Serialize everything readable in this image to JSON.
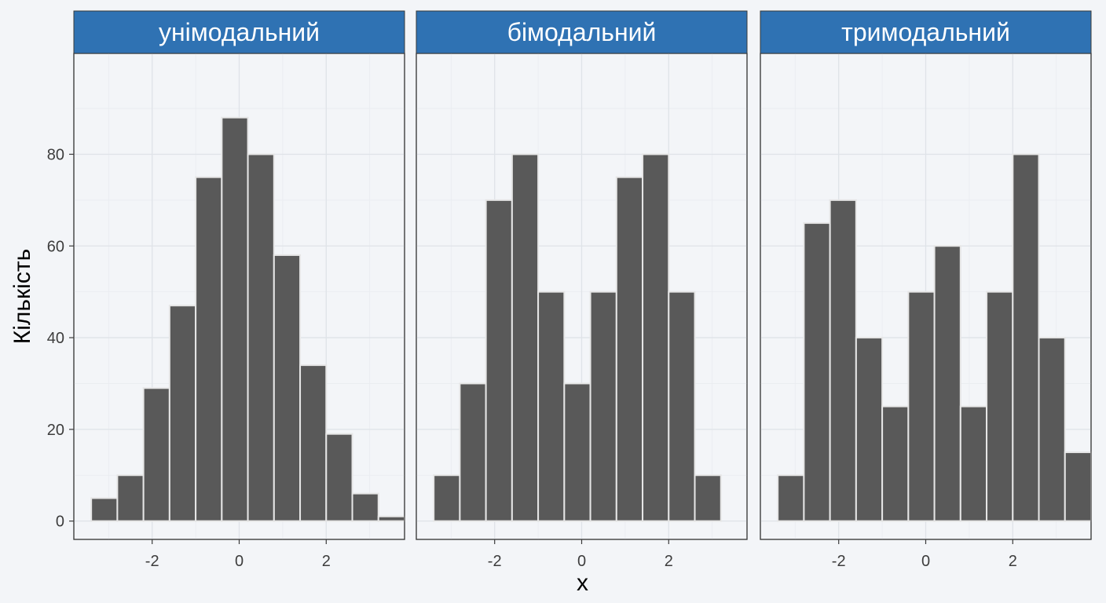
{
  "chart_data": {
    "type": "bar",
    "xlabel": "x",
    "ylabel": "Кількість",
    "ylim": [
      -4,
      102
    ],
    "xlim": [
      -3.8,
      3.8
    ],
    "x_ticks": [
      -2,
      0,
      2
    ],
    "y_ticks": [
      0,
      20,
      40,
      60,
      80
    ],
    "grid": true,
    "panels": [
      {
        "label": "унімодальний",
        "bins": [
          {
            "x0": -3.4,
            "x1": -2.8,
            "count": 5
          },
          {
            "x0": -2.8,
            "x1": -2.2,
            "count": 10
          },
          {
            "x0": -2.2,
            "x1": -1.6,
            "count": 29
          },
          {
            "x0": -1.6,
            "x1": -1.0,
            "count": 47
          },
          {
            "x0": -1.0,
            "x1": -0.4,
            "count": 75
          },
          {
            "x0": -0.4,
            "x1": 0.2,
            "count": 88
          },
          {
            "x0": 0.2,
            "x1": 0.8,
            "count": 80
          },
          {
            "x0": 0.8,
            "x1": 1.4,
            "count": 58
          },
          {
            "x0": 1.4,
            "x1": 2.0,
            "count": 34
          },
          {
            "x0": 2.0,
            "x1": 2.6,
            "count": 19
          },
          {
            "x0": 2.6,
            "x1": 3.2,
            "count": 6
          },
          {
            "x0": 3.2,
            "x1": 3.8,
            "count": 1
          }
        ]
      },
      {
        "label": "бімодальний",
        "bins": [
          {
            "x0": -3.4,
            "x1": -2.8,
            "count": 10
          },
          {
            "x0": -2.8,
            "x1": -2.2,
            "count": 30
          },
          {
            "x0": -2.2,
            "x1": -1.6,
            "count": 70
          },
          {
            "x0": -1.6,
            "x1": -1.0,
            "count": 80
          },
          {
            "x0": -1.0,
            "x1": -0.4,
            "count": 50
          },
          {
            "x0": -0.4,
            "x1": 0.2,
            "count": 30
          },
          {
            "x0": 0.2,
            "x1": 0.8,
            "count": 50
          },
          {
            "x0": 0.8,
            "x1": 1.4,
            "count": 75
          },
          {
            "x0": 1.4,
            "x1": 2.0,
            "count": 80
          },
          {
            "x0": 2.0,
            "x1": 2.6,
            "count": 50
          },
          {
            "x0": 2.6,
            "x1": 3.2,
            "count": 10
          }
        ]
      },
      {
        "label": "тримодальний",
        "bins": [
          {
            "x0": -3.4,
            "x1": -2.8,
            "count": 10
          },
          {
            "x0": -2.8,
            "x1": -2.2,
            "count": 65
          },
          {
            "x0": -2.2,
            "x1": -1.6,
            "count": 70
          },
          {
            "x0": -1.6,
            "x1": -1.0,
            "count": 40
          },
          {
            "x0": -1.0,
            "x1": -0.4,
            "count": 25
          },
          {
            "x0": -0.4,
            "x1": 0.2,
            "count": 50
          },
          {
            "x0": 0.2,
            "x1": 0.8,
            "count": 60
          },
          {
            "x0": 0.8,
            "x1": 1.4,
            "count": 25
          },
          {
            "x0": 1.4,
            "x1": 2.0,
            "count": 50
          },
          {
            "x0": 2.0,
            "x1": 2.6,
            "count": 80
          },
          {
            "x0": 2.6,
            "x1": 3.2,
            "count": 40
          },
          {
            "x0": 3.2,
            "x1": 3.8,
            "count": 15
          }
        ]
      }
    ]
  },
  "colors": {
    "strip": "#2f72b3",
    "bar_fill": "#595959",
    "bar_outline": "#e6e6e6",
    "panel_background": "#f3f5f8"
  }
}
